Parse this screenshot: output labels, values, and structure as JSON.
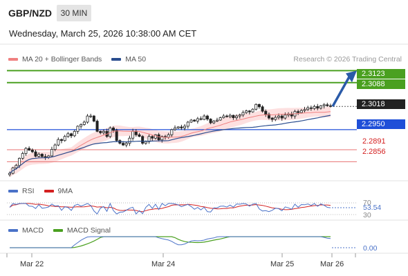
{
  "header": {
    "pair": "GBP/NZD",
    "timeframe": "30 MIN",
    "datetime": "Wednesday, March 25, 2026 10:38:00 AM CET"
  },
  "legend": {
    "main": [
      {
        "label": "MA 20 + Bollinger Bands",
        "color": "#f08080"
      },
      {
        "label": "MA 50",
        "color": "#2a4d8f"
      }
    ],
    "credit": "Research © 2026 Trading Central",
    "rsi": [
      {
        "label": "RSI",
        "color": "#4a72c8"
      },
      {
        "label": "9MA",
        "color": "#d42020"
      }
    ],
    "macd": [
      {
        "label": "MACD",
        "color": "#4a72c8"
      },
      {
        "label": "MACD Signal",
        "color": "#4aa020"
      }
    ]
  },
  "price_labels": {
    "target_high": "2.3123",
    "target_low": "2.3088",
    "current": "2.3018",
    "pivot": "2.2950",
    "support1": "2.2891",
    "support2": "2.2856"
  },
  "x_axis": {
    "ticks": [
      "Mar 22",
      "Mar 24",
      "Mar 25",
      "Mar 26"
    ]
  },
  "chart_data": [
    {
      "type": "candlestick",
      "title": "",
      "ylim": [
        2.28,
        2.314
      ],
      "levels": {
        "resistance": [
          2.3123,
          2.3088
        ],
        "pivot": 2.295,
        "support": [
          2.2891,
          2.2856
        ],
        "last": 2.3018
      },
      "close": [
        2.2822,
        2.2838,
        2.2845,
        2.2866,
        2.288,
        2.2895,
        2.289,
        2.2885,
        2.2872,
        2.2878,
        2.2871,
        2.2869,
        2.2873,
        2.2892,
        2.2905,
        2.2921,
        2.2918,
        2.293,
        2.2938,
        2.2932,
        2.2945,
        2.296,
        2.2965,
        2.2972,
        2.299,
        2.299,
        2.2975,
        2.2945,
        2.2941,
        2.2945,
        2.293,
        2.2955,
        2.2948,
        2.2918,
        2.291,
        2.2905,
        2.291,
        2.2925,
        2.2945,
        2.2935,
        2.293,
        2.291,
        2.2915,
        2.293,
        2.2925,
        2.2935,
        2.292,
        2.293,
        2.2928,
        2.2935,
        2.295,
        2.2955,
        2.2958,
        2.2955,
        2.296,
        2.2972,
        2.2978,
        2.2975,
        2.2982,
        2.298,
        2.299,
        2.2981,
        2.297,
        2.2975,
        2.2978,
        2.2985,
        2.299,
        2.2988,
        2.2992,
        2.2985,
        2.299,
        2.2993,
        2.3,
        2.3005,
        2.3002,
        2.301,
        2.3024,
        2.3017,
        2.3004,
        2.2995,
        2.2984,
        2.298,
        2.2986,
        2.299,
        2.2984,
        2.2993,
        2.2996,
        2.299,
        2.3003,
        2.3,
        2.3006,
        2.3009,
        2.3014,
        2.3012,
        2.3018,
        2.3013,
        2.302,
        2.3023,
        2.302,
        2.3018
      ],
      "bollinger_bands": {
        "upper_max": 2.3031,
        "lower_min": 2.2813
      }
    },
    {
      "type": "line",
      "title": "RSI",
      "ylim": [
        30,
        70
      ],
      "y_ticks": [
        70,
        30
      ],
      "last_value": "53.54",
      "series": [
        {
          "name": "RSI"
        },
        {
          "name": "9MA"
        }
      ]
    },
    {
      "type": "line",
      "title": "MACD",
      "zero_label": "0.00",
      "series": [
        {
          "name": "MACD"
        },
        {
          "name": "MACD Signal"
        }
      ]
    }
  ]
}
